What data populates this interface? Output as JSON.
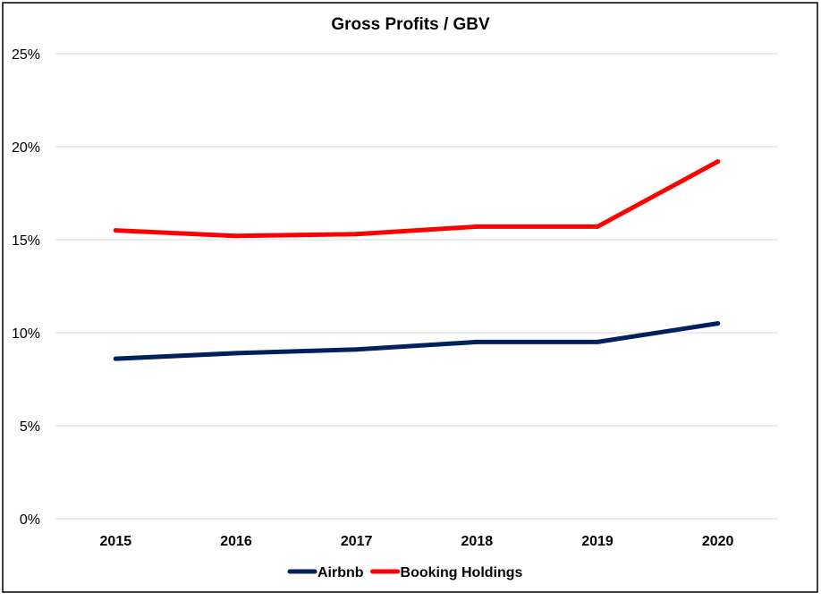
{
  "chart_data": {
    "type": "line",
    "title": "Gross Profits / GBV",
    "xlabel": "",
    "ylabel": "",
    "categories": [
      "2015",
      "2016",
      "2017",
      "2018",
      "2019",
      "2020"
    ],
    "ylim": [
      0,
      25
    ],
    "yticks": [
      0,
      5,
      10,
      15,
      20,
      25
    ],
    "ytick_labels": [
      "0%",
      "5%",
      "10%",
      "15%",
      "20%",
      "25%"
    ],
    "grid": "horizontal",
    "legend_position": "bottom",
    "series": [
      {
        "name": "Airbnb",
        "color": "#002060",
        "values": [
          8.6,
          8.9,
          9.1,
          9.5,
          9.5,
          10.5
        ]
      },
      {
        "name": "Booking Holdings",
        "color": "#ff0000",
        "values": [
          15.5,
          15.2,
          15.3,
          15.7,
          15.7,
          19.2
        ]
      }
    ]
  }
}
